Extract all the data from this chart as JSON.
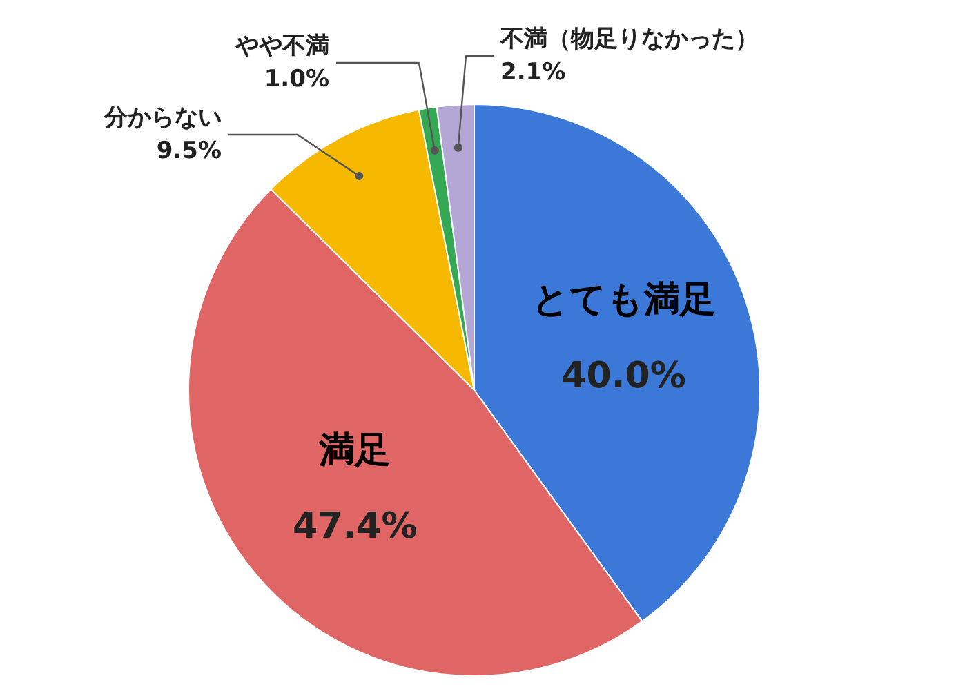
{
  "chart_data": {
    "type": "pie",
    "categories": [
      "とても満足",
      "満足",
      "分からない",
      "やや不満",
      "不満（物足りなかった）"
    ],
    "values": [
      40.0,
      47.4,
      9.5,
      1.0,
      2.1
    ],
    "colors": [
      "#3c78d8",
      "#e06666",
      "#f6b900",
      "#34a853",
      "#b4a7d6"
    ],
    "value_labels": [
      "40.0%",
      "47.4%",
      "9.5%",
      "1.0%",
      "2.1%"
    ],
    "legend": false
  }
}
